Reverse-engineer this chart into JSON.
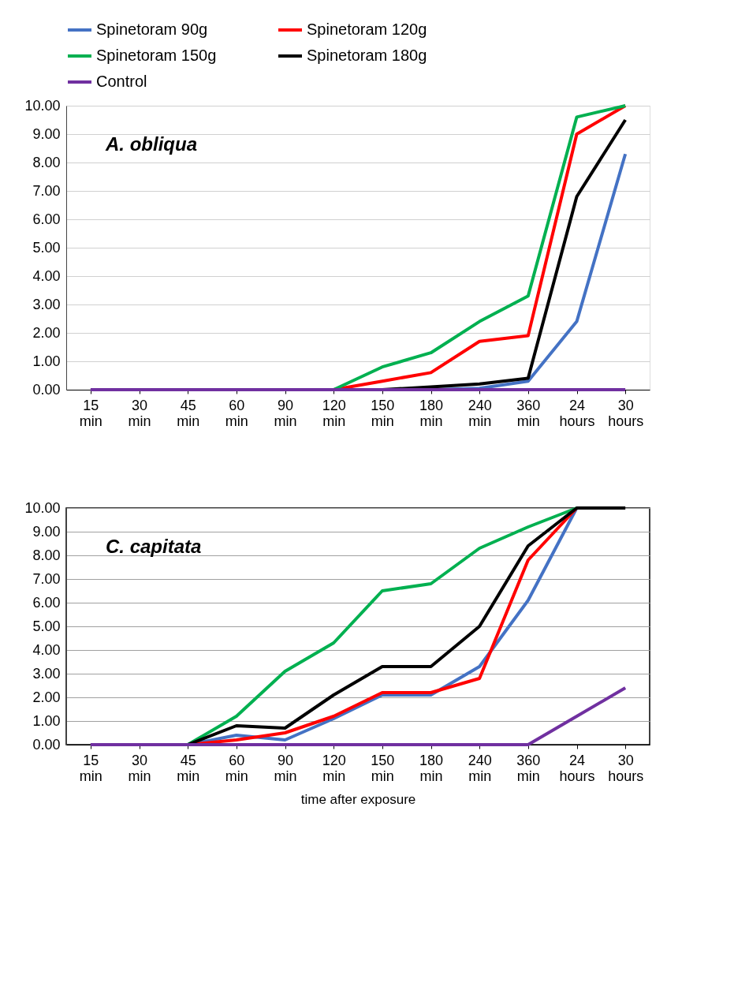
{
  "chart_data": [
    {
      "type": "line",
      "categories": [
        "15 min",
        "30 min",
        "45 min",
        "60 min",
        "90 min",
        "120 min",
        "150 min",
        "180 min",
        "240 min",
        "360 min",
        "24 hours",
        "30 hours"
      ],
      "series": [
        {
          "name": "Spinetoram 90g",
          "color": "#4472c4",
          "values": [
            null,
            null,
            null,
            null,
            null,
            null,
            null,
            0,
            0.05,
            0.3,
            2.4,
            8.3
          ]
        },
        {
          "name": "Spinetoram 120g",
          "color": "#ff0000",
          "values": [
            null,
            null,
            null,
            null,
            null,
            0,
            0.3,
            0.6,
            1.7,
            1.9,
            9.0,
            10
          ]
        },
        {
          "name": "Spinetoram 150g",
          "color": "#00b050",
          "values": [
            null,
            null,
            null,
            null,
            null,
            0,
            0.8,
            1.3,
            2.4,
            3.3,
            9.6,
            10
          ]
        },
        {
          "name": "Spinetoram 180g",
          "color": "#000000",
          "values": [
            null,
            null,
            null,
            null,
            null,
            null,
            0,
            0.1,
            0.2,
            0.4,
            6.8,
            9.5
          ]
        },
        {
          "name": "Control",
          "color": "#7030a0",
          "values": [
            0,
            0,
            0,
            0,
            0,
            0,
            0,
            0,
            0,
            0,
            0,
            0
          ]
        }
      ],
      "ylim": [
        0,
        10
      ],
      "yticks": [
        {
          "value": 0,
          "label": "0.00"
        },
        {
          "value": 1,
          "label": "1.00"
        },
        {
          "value": 2,
          "label": "2.00"
        },
        {
          "value": 3,
          "label": "3.00"
        },
        {
          "value": 4,
          "label": "4.00"
        },
        {
          "value": 5,
          "label": "5.00"
        },
        {
          "value": 6,
          "label": "6.00"
        },
        {
          "value": 7,
          "label": "7.00"
        },
        {
          "value": 8,
          "label": "8.00"
        },
        {
          "value": 9,
          "label": "9.00"
        },
        {
          "value": 10,
          "label": "10.00"
        }
      ],
      "annotations": [
        "A. obliqua"
      ],
      "grid": "y",
      "legend": "top",
      "marker": "none",
      "line_style": "solid"
    },
    {
      "type": "line",
      "categories": [
        "15 min",
        "30 min",
        "45 min",
        "60 min",
        "90 min",
        "120 min",
        "150 min",
        "180 min",
        "240 min",
        "360 min",
        "24 hours",
        "30 hours"
      ],
      "series": [
        {
          "color": "#4472c4",
          "values": [
            null,
            null,
            0,
            0.4,
            0.2,
            1.1,
            2.1,
            2.1,
            3.3,
            6.1,
            10,
            null
          ]
        },
        {
          "color": "#ff0000",
          "values": [
            null,
            null,
            0,
            0.2,
            0.5,
            1.2,
            2.2,
            2.2,
            2.8,
            7.8,
            10,
            null
          ]
        },
        {
          "color": "#00b050",
          "values": [
            null,
            null,
            0,
            1.2,
            3.1,
            4.3,
            6.5,
            6.8,
            8.3,
            9.2,
            10,
            null
          ]
        },
        {
          "color": "#000000",
          "values": [
            null,
            null,
            0,
            0.8,
            0.7,
            2.1,
            3.3,
            3.3,
            5.0,
            8.4,
            10,
            10
          ]
        },
        {
          "color": "#7030a0",
          "values": [
            0,
            0,
            0,
            0,
            0,
            0,
            0,
            0,
            0,
            0,
            1.2,
            2.4
          ]
        }
      ],
      "ylim": [
        0,
        10
      ],
      "yticks": [
        {
          "value": 0,
          "label": "0.00"
        },
        {
          "value": 1,
          "label": "1.00"
        },
        {
          "value": 2,
          "label": "2.00"
        },
        {
          "value": 3,
          "label": "3.00"
        },
        {
          "value": 4,
          "label": "4.00"
        },
        {
          "value": 5,
          "label": "5.00"
        },
        {
          "value": 6,
          "label": "6.00"
        },
        {
          "value": 7,
          "label": "7.00"
        },
        {
          "value": 8,
          "label": "8.00"
        },
        {
          "value": 9,
          "label": "9.00"
        },
        {
          "value": 10,
          "label": "10.00"
        }
      ],
      "xlabel": "time after exposure",
      "annotations": [
        "C. capitata"
      ],
      "grid": "y",
      "legend": false,
      "marker": "none",
      "line_style": "solid"
    }
  ]
}
